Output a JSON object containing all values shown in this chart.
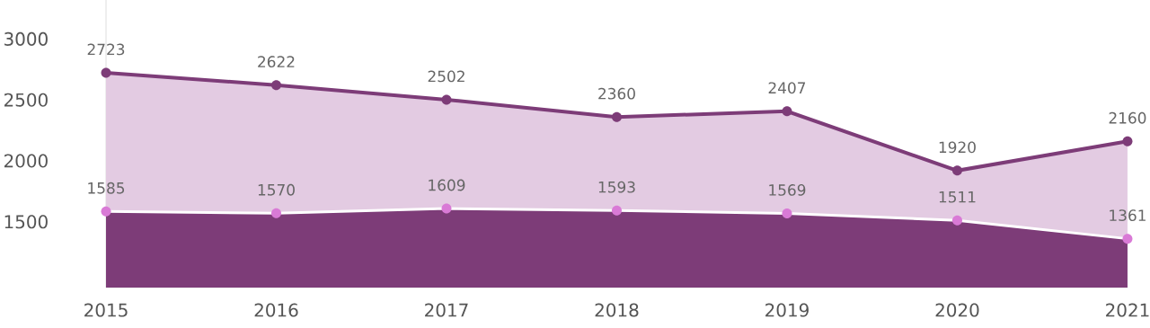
{
  "chart_data": {
    "type": "area",
    "categories": [
      "2015",
      "2016",
      "2017",
      "2018",
      "2019",
      "2020",
      "2021"
    ],
    "series": [
      {
        "color": "#e3cbe2",
        "values": [
          2723,
          2622,
          2502,
          2360,
          2407,
          1920,
          2160
        ]
      },
      {
        "color": "#7d3c78",
        "values": [
          1585,
          1570,
          1609,
          1593,
          1569,
          1511,
          1361
        ]
      }
    ],
    "ylim": [
      960,
      3320
    ],
    "yticks": [
      1500,
      2000,
      2500,
      3000
    ],
    "data_labels": true,
    "marker": "circle",
    "grid": false
  }
}
